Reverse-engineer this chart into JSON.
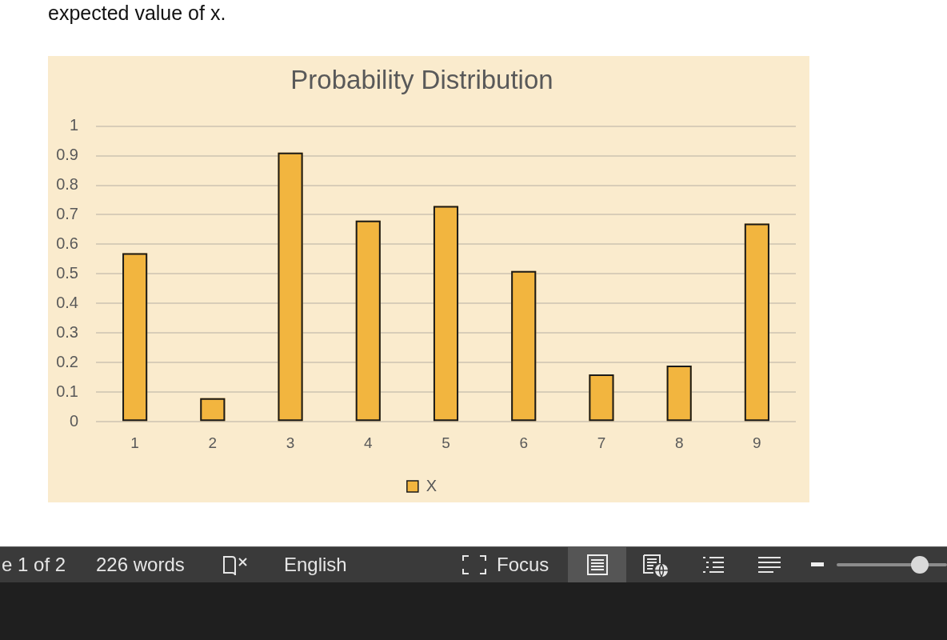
{
  "chart_data": {
    "type": "bar",
    "title": "Probability Distribution",
    "categories": [
      "1",
      "2",
      "3",
      "4",
      "5",
      "6",
      "7",
      "8",
      "9"
    ],
    "series": [
      {
        "name": "X",
        "color": "#f2b53f",
        "values": [
          0.57,
          0.08,
          0.91,
          0.68,
          0.73,
          0.51,
          0.16,
          0.19,
          0.67
        ]
      }
    ],
    "ylim": [
      0,
      1
    ],
    "yticks": [
      0,
      0.1,
      0.2,
      0.3,
      0.4,
      0.5,
      0.6,
      0.7,
      0.8,
      0.9,
      1
    ],
    "grid": "y",
    "legend": "bottom",
    "annotations": [
      "expected value of x.",
      "e 1 of 2",
      "226 words",
      "English",
      "Focus"
    ]
  }
}
